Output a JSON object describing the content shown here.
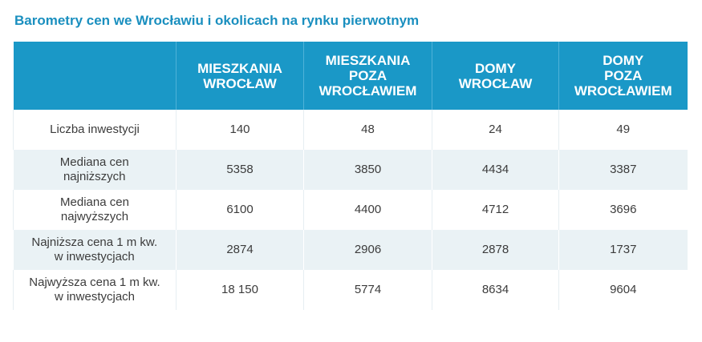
{
  "title": "Barometry cen we Wrocławiu i okolicach na rynku pierwotnym",
  "colors": {
    "title": "#1a8fbf",
    "header_bg": "#1a98c7",
    "header_text": "#ffffff",
    "row_shade": "#eaf2f5",
    "body_text": "#3c3c3c"
  },
  "table": {
    "headers": [
      {
        "lines": []
      },
      {
        "lines": [
          "MIESZKANIA",
          "WROCŁAW"
        ]
      },
      {
        "lines": [
          "MIESZKANIA",
          "POZA",
          "WROCŁAWIEM"
        ]
      },
      {
        "lines": [
          "DOMY",
          "WROCŁAW"
        ]
      },
      {
        "lines": [
          "DOMY",
          "POZA",
          "WROCŁAWIEM"
        ]
      }
    ],
    "rows": [
      {
        "label": [
          "Liczba inwestycji"
        ],
        "values": [
          "140",
          "48",
          "24",
          "49"
        ]
      },
      {
        "label": [
          "Mediana cen",
          "najniższych"
        ],
        "values": [
          "5358",
          "3850",
          "4434",
          "3387"
        ]
      },
      {
        "label": [
          "Mediana cen",
          "najwyższych"
        ],
        "values": [
          "6100",
          "4400",
          "4712",
          "3696"
        ]
      },
      {
        "label": [
          "Najniższa cena 1 m kw.",
          "w inwestycjach"
        ],
        "values": [
          "2874",
          "2906",
          "2878",
          "1737"
        ]
      },
      {
        "label": [
          "Najwyższa cena 1 m kw.",
          "w inwestycjach"
        ],
        "values": [
          "18 150",
          "5774",
          "8634",
          "9604"
        ]
      }
    ]
  }
}
